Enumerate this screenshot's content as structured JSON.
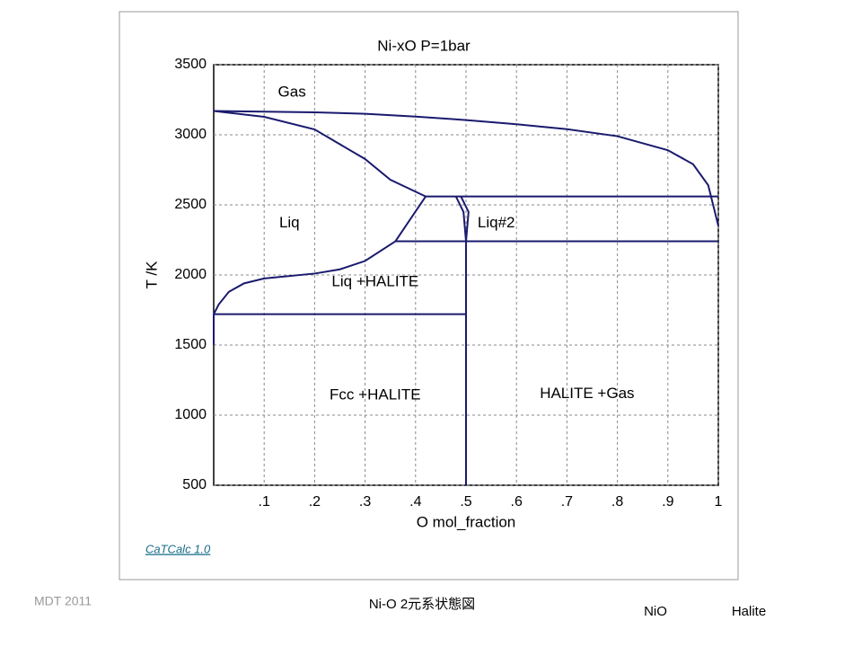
{
  "chart_data": {
    "type": "line",
    "title": "Ni-xO    P=1bar",
    "x_label": "O mol_fraction",
    "y_label": "T /K",
    "xlim": [
      0,
      1
    ],
    "ylim": [
      500,
      3500
    ],
    "xticks": [
      {
        "value": 0.1,
        "label": ".1"
      },
      {
        "value": 0.2,
        "label": ".2"
      },
      {
        "value": 0.3,
        "label": ".3"
      },
      {
        "value": 0.4,
        "label": ".4"
      },
      {
        "value": 0.5,
        "label": ".5"
      },
      {
        "value": 0.6,
        "label": ".6"
      },
      {
        "value": 0.7,
        "label": ".7"
      },
      {
        "value": 0.8,
        "label": ".8"
      },
      {
        "value": 0.9,
        "label": ".9"
      },
      1
    ],
    "yticks": [
      500,
      1000,
      1500,
      2000,
      2500,
      3000,
      3500
    ],
    "grid": true,
    "color": "#1a1a6e",
    "series": [
      {
        "x": [
          0,
          0.1,
          0.2,
          0.3,
          0.4,
          0.5,
          0.6,
          0.7,
          0.8,
          0.9,
          0.95,
          0.98,
          1
        ],
        "values": [
          3170,
          3165,
          3160,
          3150,
          3130,
          3105,
          3075,
          3040,
          2990,
          2890,
          2790,
          2640,
          2350
        ]
      },
      {
        "x": [
          0,
          0.1,
          0.2,
          0.3,
          0.35,
          0.42
        ],
        "values": [
          3170,
          3128,
          3038,
          2827,
          2679,
          2560
        ]
      },
      {
        "x": [
          0.42,
          1
        ],
        "values": [
          2560,
          2560
        ]
      },
      {
        "x": [
          0.36,
          1
        ],
        "values": [
          2240,
          2240
        ]
      },
      {
        "x": [
          0.36,
          0.42
        ],
        "values": [
          2240,
          2560
        ]
      },
      {
        "x": [
          0,
          0.01,
          0.03,
          0.06,
          0.1,
          0.2,
          0.25,
          0.3,
          0.36
        ],
        "values": [
          1720,
          1790,
          1880,
          1940,
          1975,
          2010,
          2040,
          2100,
          2240
        ]
      },
      {
        "x": [
          0,
          0
        ],
        "values": [
          1500,
          1720
        ]
      },
      {
        "x": [
          0,
          0.5
        ],
        "values": [
          1720,
          1720
        ]
      },
      {
        "x": [
          0.48,
          0.495,
          0.5
        ],
        "values": [
          2560,
          2450,
          2240
        ]
      },
      {
        "x": [
          0.49,
          0.505,
          0.5
        ],
        "values": [
          2560,
          2450,
          2240
        ]
      },
      {
        "x": [
          0.5,
          0.5
        ],
        "values": [
          500,
          2240
        ]
      }
    ],
    "annotations": [
      {
        "text": "Gas",
        "x": 0.155,
        "y": 3300
      },
      {
        "text": "Liq",
        "x": 0.15,
        "y": 2370
      },
      {
        "text": "Liq#2",
        "x": 0.56,
        "y": 2370
      },
      {
        "text": "Liq +HALITE",
        "x": 0.32,
        "y": 1950
      },
      {
        "text": "Fcc +HALITE",
        "x": 0.32,
        "y": 1140
      },
      {
        "text": "HALITE +Gas",
        "x": 0.74,
        "y": 1150
      }
    ]
  },
  "software": "CaTCalc 1.0",
  "footer": {
    "credit": "MDT   2011",
    "caption": "Ni-O 2元系状態図",
    "compound": "NiO",
    "structure": "Halite"
  }
}
